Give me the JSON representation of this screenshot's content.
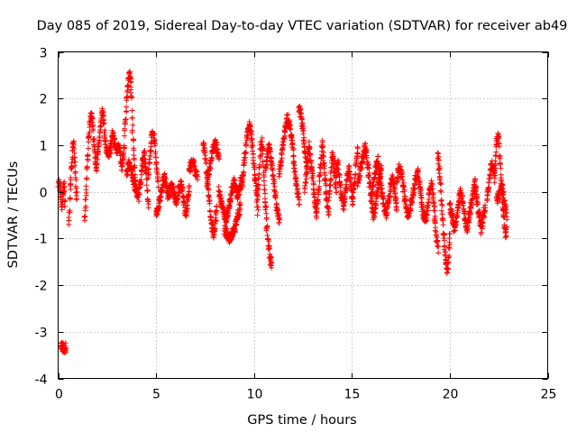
{
  "chart_data": {
    "type": "scatter",
    "title": "Day 085 of 2019, Sidereal Day-to-day VTEC variation (SDTVAR) for receiver ab49",
    "xlabel": "GPS time / hours",
    "ylabel": "SDTVAR / TECUs",
    "xlim": [
      0,
      25
    ],
    "ylim": [
      -4,
      3
    ],
    "xticks": [
      "0",
      "5",
      "10",
      "15",
      "20",
      "25"
    ],
    "yticks": [
      "-4",
      "-3",
      "-2",
      "-1",
      "0",
      "1",
      "2",
      "3"
    ],
    "grid": true,
    "marker": "+",
    "color": "#ff0000",
    "series": [
      {
        "name": "SDTVAR",
        "segments": [
          {
            "x0": 0.0,
            "x1": 0.35,
            "y": [
              0.2,
              0.25,
              0.1,
              -0.05,
              -0.2,
              -0.3,
              -0.1,
              0.05,
              0.15,
              -0.25
            ]
          },
          {
            "x0": 0.15,
            "x1": 0.4,
            "y": [
              -3.25,
              -3.3,
              -3.35,
              -3.3,
              -3.38,
              -3.28
            ]
          },
          {
            "x0": 0.55,
            "x1": 0.95,
            "y": [
              -0.6,
              -0.2,
              0.1,
              0.4,
              0.7,
              0.95,
              1.05,
              0.8,
              0.5,
              0.1,
              -0.1
            ]
          },
          {
            "x0": 1.35,
            "x1": 1.95,
            "y": [
              -0.6,
              -0.2,
              0.3,
              0.8,
              1.2,
              1.5,
              1.65,
              1.55,
              1.3,
              1.0,
              0.7,
              0.5
            ]
          },
          {
            "x0": 1.95,
            "x1": 2.6,
            "y": [
              0.5,
              0.8,
              1.0,
              1.2,
              1.5,
              1.75,
              1.6,
              1.3,
              1.0,
              0.9,
              0.8,
              0.9
            ]
          },
          {
            "x0": 2.6,
            "x1": 3.3,
            "y": [
              0.8,
              0.9,
              1.1,
              1.25,
              1.1,
              0.95,
              0.85,
              0.9,
              1.0,
              0.8,
              0.5,
              0.7
            ]
          },
          {
            "x0": 3.3,
            "x1": 3.95,
            "y": [
              0.6,
              0.9,
              1.4,
              1.8,
              2.2,
              2.45,
              2.5,
              2.35,
              1.7,
              1.0,
              0.5,
              0.2
            ]
          },
          {
            "x0": 3.5,
            "x1": 4.6,
            "y": [
              0.4,
              0.6,
              0.5,
              0.3,
              0.1,
              0.0,
              -0.1,
              0.2,
              0.6,
              0.8,
              0.4,
              -0.3
            ]
          },
          {
            "x0": 4.6,
            "x1": 5.1,
            "y": [
              0.3,
              0.6,
              0.9,
              1.2,
              1.35,
              1.1,
              0.8,
              0.5,
              0.2
            ]
          },
          {
            "x0": 5.0,
            "x1": 5.8,
            "y": [
              -0.5,
              -0.4,
              -0.2,
              0.0,
              0.2,
              0.3,
              0.1,
              -0.1,
              0.0,
              0.2
            ]
          },
          {
            "x0": 5.8,
            "x1": 6.7,
            "y": [
              0.1,
              0.0,
              -0.1,
              -0.2,
              0.0,
              0.1,
              0.15,
              0.0,
              -0.3,
              -0.5,
              -0.2,
              0.1
            ]
          },
          {
            "x0": 6.7,
            "x1": 7.1,
            "y": [
              0.5,
              0.6,
              0.7,
              0.45,
              0.3
            ]
          },
          {
            "x0": 7.4,
            "x1": 8.1,
            "y": [
              1.0,
              0.9,
              0.7,
              0.4,
              0.1,
              -0.2,
              -0.5,
              -0.7,
              -0.85,
              -0.9,
              -0.6,
              -0.3
            ]
          },
          {
            "x0": 7.6,
            "x1": 8.2,
            "y": [
              0.2,
              0.4,
              0.6,
              0.8,
              0.95,
              1.05,
              0.9,
              0.7
            ]
          },
          {
            "x0": 8.2,
            "x1": 9.4,
            "y": [
              0.0,
              -0.2,
              -0.4,
              -0.6,
              -0.5,
              -0.3,
              0.0,
              0.2,
              0.1,
              -0.1,
              0.1,
              0.3
            ]
          },
          {
            "x0": 8.5,
            "x1": 9.3,
            "y": [
              -0.8,
              -0.9,
              -1.0,
              -0.95,
              -0.85,
              -0.7,
              -0.5,
              -0.3
            ]
          },
          {
            "x0": 9.4,
            "x1": 10.2,
            "y": [
              0.2,
              0.5,
              0.8,
              1.1,
              1.3,
              1.45,
              1.3,
              1.0,
              0.6,
              0.3,
              0.0,
              -0.4
            ]
          },
          {
            "x0": 10.2,
            "x1": 10.9,
            "y": [
              0.0,
              0.4,
              0.9,
              1.1,
              0.8,
              0.2,
              -0.3,
              -0.7,
              -1.0,
              -1.2,
              -1.45,
              -1.55
            ]
          },
          {
            "x0": 10.6,
            "x1": 11.3,
            "y": [
              0.5,
              0.8,
              1.0,
              0.9,
              0.6,
              0.3,
              0.0,
              -0.3,
              -0.5,
              -0.6
            ]
          },
          {
            "x0": 11.3,
            "x1": 12.3,
            "y": [
              0.4,
              0.7,
              1.0,
              1.3,
              1.5,
              1.6,
              1.4,
              1.1,
              0.7,
              0.3,
              0.0,
              -0.2
            ]
          },
          {
            "x0": 12.3,
            "x1": 12.7,
            "y": [
              1.8,
              1.6,
              1.3,
              0.9,
              0.5
            ]
          },
          {
            "x0": 12.6,
            "x1": 14.2,
            "y": [
              0.0,
              0.5,
              1.0,
              0.7,
              0.3,
              -0.2,
              -0.5,
              0.0,
              0.6,
              1.0,
              0.5,
              -0.1,
              -0.4,
              0.2,
              0.8,
              0.5,
              0.0
            ]
          },
          {
            "x0": 14.2,
            "x1": 15.3,
            "y": [
              0.4,
              0.6,
              0.2,
              -0.1,
              -0.3,
              -0.1,
              0.3,
              0.5,
              0.2,
              -0.2,
              0.1,
              0.6,
              0.9
            ]
          },
          {
            "x0": 15.3,
            "x1": 16.5,
            "y": [
              0.2,
              0.4,
              0.6,
              0.8,
              1.0,
              0.6,
              0.2,
              -0.2,
              -0.5,
              -0.3,
              0.0,
              0.3,
              0.5
            ]
          },
          {
            "x0": 16.0,
            "x1": 17.3,
            "y": [
              -0.1,
              0.2,
              0.5,
              0.7,
              0.3,
              0.0,
              -0.3,
              -0.5,
              -0.2,
              0.1,
              0.3,
              0.0,
              -0.3
            ]
          },
          {
            "x0": 17.3,
            "x1": 18.7,
            "y": [
              0.3,
              0.5,
              0.4,
              0.1,
              -0.2,
              -0.5,
              -0.4,
              -0.2,
              0.0,
              0.3,
              0.4,
              0.1,
              -0.3,
              -0.6
            ]
          },
          {
            "x0": 18.7,
            "x1": 19.4,
            "y": [
              -0.5,
              -0.6,
              -0.4,
              -0.1,
              0.1,
              0.2,
              -0.2,
              -0.6,
              -1.0,
              -1.2
            ]
          },
          {
            "x0": 19.4,
            "x1": 20.0,
            "y": [
              0.8,
              0.5,
              0.2,
              -0.3,
              -0.8,
              -1.2,
              -1.5,
              -1.7,
              -1.4,
              -1.0
            ]
          },
          {
            "x0": 20.0,
            "x1": 21.3,
            "y": [
              -0.3,
              -0.5,
              -0.8,
              -0.6,
              -0.3,
              0.0,
              -0.2,
              -0.5,
              -0.8,
              -0.6,
              -0.3,
              0.0,
              0.2
            ]
          },
          {
            "x0": 21.3,
            "x1": 21.8,
            "y": [
              0.1,
              -0.2,
              -0.5,
              -0.8,
              -0.6,
              -0.3
            ]
          },
          {
            "x0": 21.9,
            "x1": 22.3,
            "y": [
              -0.2,
              0.1,
              0.4,
              0.6,
              0.5,
              0.3
            ]
          },
          {
            "x0": 22.3,
            "x1": 22.9,
            "y": [
              0.5,
              0.8,
              1.1,
              1.3,
              1.0,
              0.6,
              0.2,
              -0.2,
              -0.5,
              -0.7,
              -0.9,
              -0.8
            ]
          },
          {
            "x0": 22.4,
            "x1": 22.9,
            "y": [
              -0.2,
              -0.1,
              0.0,
              0.1,
              0.0,
              -0.3,
              -0.5
            ]
          }
        ]
      }
    ]
  }
}
